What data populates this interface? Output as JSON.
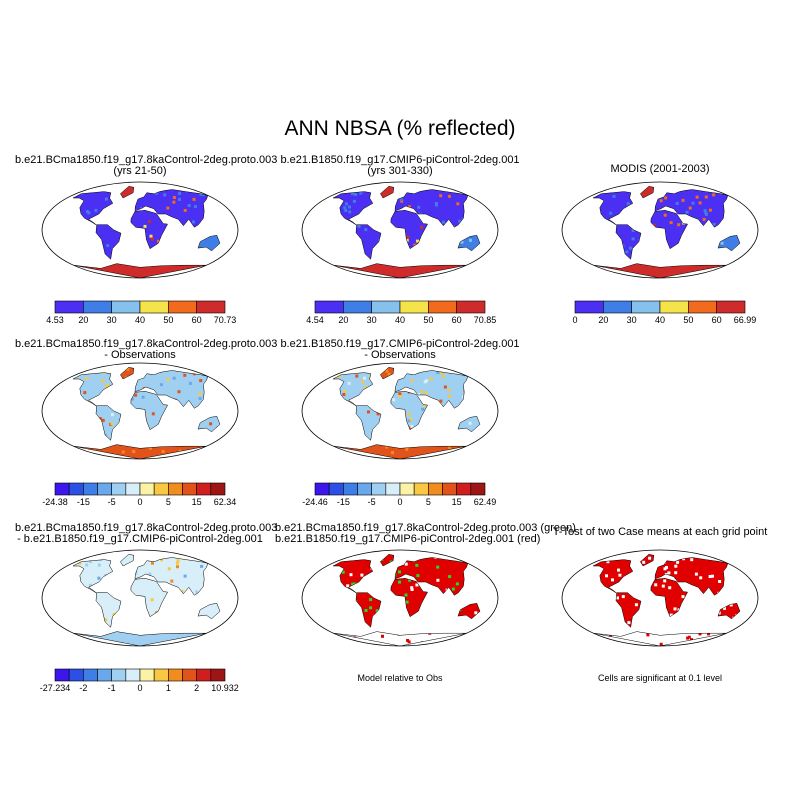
{
  "title": "ANN NBSA (% reflected)",
  "colors": {
    "abs_scale": [
      "#4b2ff2",
      "#3f7ee6",
      "#86c1ee",
      "#f5e34a",
      "#f26a1b",
      "#d02b2b"
    ],
    "diff_scale": [
      "#3d16ee",
      "#2c4fe6",
      "#3d7fe6",
      "#6aa8ee",
      "#9fd0f2",
      "#d8eef8",
      "#fbf2a6",
      "#f8c843",
      "#f08d1e",
      "#e2521b",
      "#d01d1d",
      "#9e1515"
    ],
    "ocean": "#ffffff",
    "coast": "#000000"
  },
  "panels": [
    {
      "id": "case1",
      "title_lines": [
        "b.e21.BCma1850.f19_g17.8kaControl-2deg.proto.003",
        "(yrs 21-50)"
      ],
      "map_style": "abs",
      "colorbar": {
        "min_label": "4.53",
        "ticks": [
          "20",
          "30",
          "40",
          "50",
          "60"
        ],
        "max_label": "70.73"
      },
      "note": ""
    },
    {
      "id": "case2",
      "title_lines": [
        "b.e21.B1850.f19_g17.CMIP6-piControl-2deg.001",
        "(yrs 301-330)"
      ],
      "map_style": "abs",
      "colorbar": {
        "min_label": "4.54",
        "ticks": [
          "20",
          "30",
          "40",
          "50",
          "60"
        ],
        "max_label": "70.85"
      },
      "note": ""
    },
    {
      "id": "obs",
      "title_lines": [
        "MODIS (2001-2003)"
      ],
      "map_style": "abs",
      "colorbar": {
        "min_label": "0",
        "ticks": [
          "20",
          "30",
          "40",
          "50",
          "60"
        ],
        "max_label": "66.99"
      },
      "note": ""
    },
    {
      "id": "case1-obs",
      "title_lines": [
        "b.e21.BCma1850.f19_g17.8kaControl-2deg.proto.003",
        "- Observations"
      ],
      "map_style": "diff",
      "colorbar": {
        "min_label": "-24.38",
        "ticks": [
          "-15",
          "-5",
          "0",
          "5",
          "15"
        ],
        "max_label": "62.34"
      },
      "note": ""
    },
    {
      "id": "case2-obs",
      "title_lines": [
        "b.e21.B1850.f19_g17.CMIP6-piControl-2deg.001",
        "- Observations"
      ],
      "map_style": "diff",
      "colorbar": {
        "min_label": "-24.46",
        "ticks": [
          "-15",
          "-5",
          "0",
          "5",
          "15"
        ],
        "max_label": "62.49"
      },
      "note": ""
    },
    {
      "id": "case1-case2",
      "title_lines": [
        "b.e21.BCma1850.f19_g17.8kaControl-2deg.proto.003",
        "- b.e21.B1850.f19_g17.CMIP6-piControl-2deg.001"
      ],
      "map_style": "casediff",
      "colorbar": {
        "min_label": "-27.234",
        "ticks": [
          "-2",
          "-1",
          "0",
          "1",
          "2"
        ],
        "max_label": "10.932"
      },
      "note": ""
    },
    {
      "id": "rel-obs",
      "title_lines": [
        "b.e21.BCma1850.f19_g17.8kaControl-2deg.proto.003 (green)",
        "b.e21.B1850.f19_g17.CMIP6-piControl-2deg.001 (red)"
      ],
      "map_style": "greenred",
      "colorbar": null,
      "note": "Model relative to Obs"
    },
    {
      "id": "ttest",
      "title_lines": [
        "T-Test of two Case means at each grid point"
      ],
      "map_style": "red",
      "colorbar": null,
      "note": "Cells are significant at 0.1 level"
    }
  ]
}
